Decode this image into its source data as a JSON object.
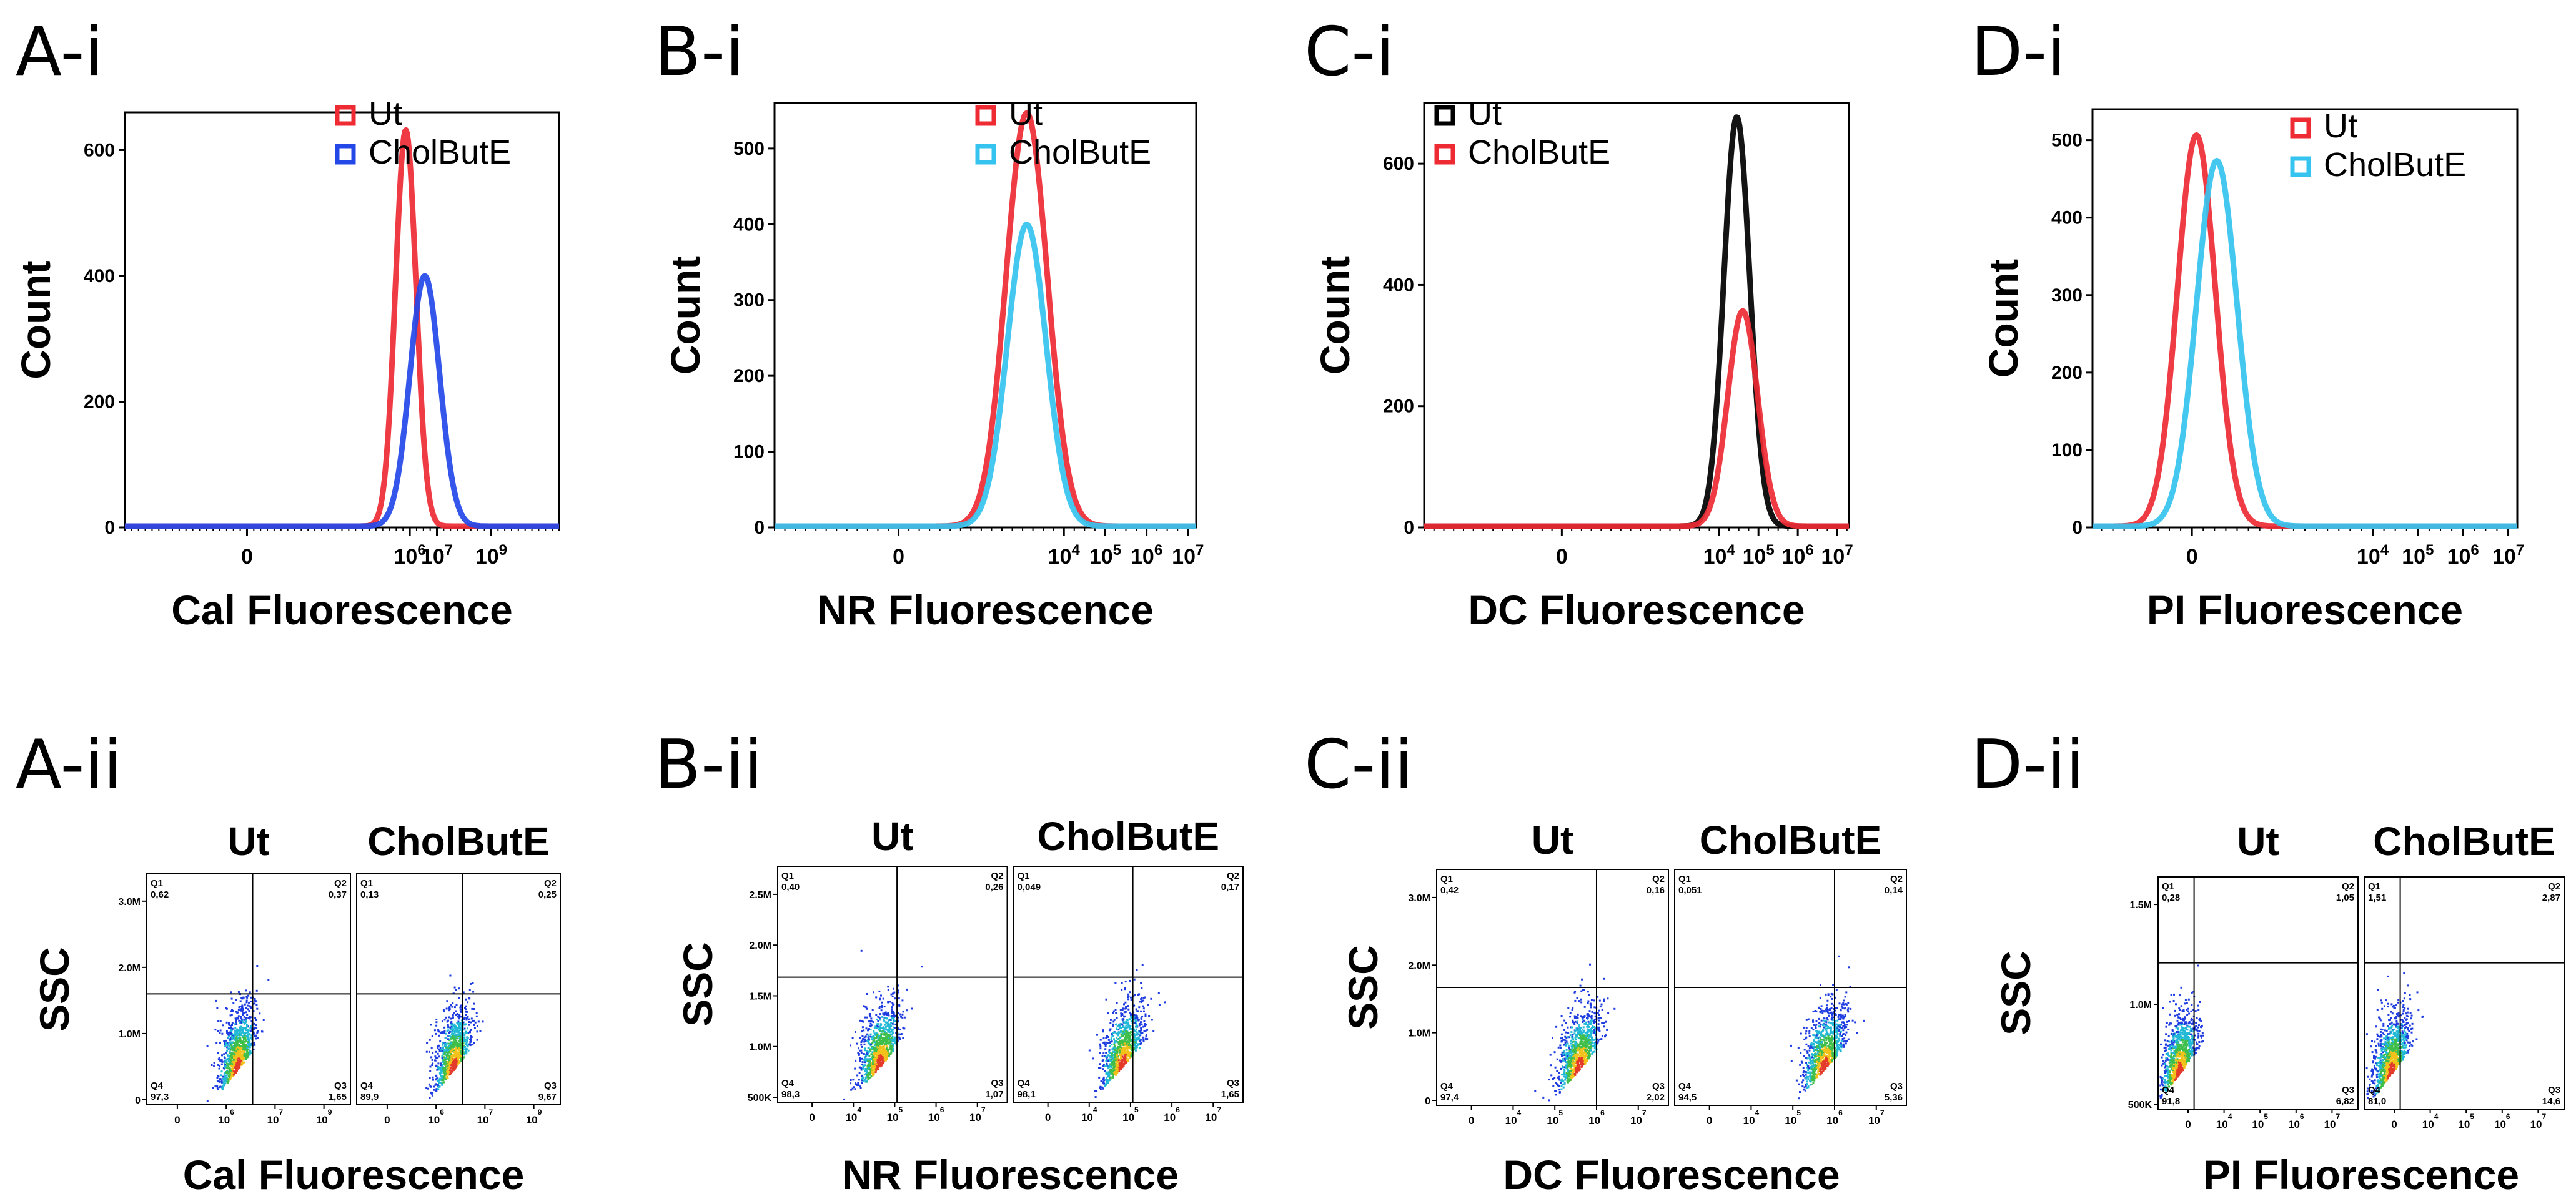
{
  "figure": {
    "panel_labels": {
      "A_i": "A-i",
      "B_i": "B-i",
      "C_i": "C-i",
      "D_i": "D-i",
      "A_ii": "A-ii",
      "B_ii": "B-ii",
      "C_ii": "C-ii",
      "D_ii": "D-ii"
    }
  },
  "colors": {
    "red": "#ee2a33",
    "blue": "#2448e8",
    "cyan": "#35c3ef",
    "black": "#000000"
  },
  "chart_data": [
    {
      "id": "A-i",
      "type": "line",
      "title": "A-i",
      "xlabel": "Cal Fluorescence",
      "ylabel": "Count",
      "ylim": [
        0,
        660
      ],
      "yticks": [
        0,
        200,
        400,
        600
      ],
      "xlim": [
        -4.5,
        11.5
      ],
      "xticks": [
        {
          "pos": 0,
          "base": "0",
          "exp": ""
        },
        {
          "pos": 6,
          "base": "10",
          "exp": "6"
        },
        {
          "pos": 7,
          "base": "10",
          "exp": "7"
        },
        {
          "pos": 9,
          "base": "10",
          "exp": "9"
        }
      ],
      "legend": [
        {
          "name": "Ut",
          "color": "#ee2a33"
        },
        {
          "name": "CholButE",
          "color": "#2448e8"
        }
      ],
      "series": [
        {
          "name": "Ut",
          "color": "#ee2a33",
          "peak_x": 5.85,
          "peak_y": 630,
          "width": 0.38
        },
        {
          "name": "CholButE",
          "color": "#2448e8",
          "peak_x": 6.55,
          "peak_y": 398,
          "width": 0.55
        }
      ]
    },
    {
      "id": "B-i",
      "type": "line",
      "title": "B-i",
      "xlabel": "NR Fluorescence",
      "ylabel": "Count",
      "ylim": [
        0,
        560
      ],
      "yticks": [
        0,
        100,
        200,
        300,
        400,
        500
      ],
      "xlim": [
        -3.0,
        7.2
      ],
      "xticks": [
        {
          "pos": 0,
          "base": "0",
          "exp": ""
        },
        {
          "pos": 4,
          "base": "10",
          "exp": "4"
        },
        {
          "pos": 5,
          "base": "10",
          "exp": "5"
        },
        {
          "pos": 6,
          "base": "10",
          "exp": "6"
        },
        {
          "pos": 7,
          "base": "10",
          "exp": "7"
        }
      ],
      "legend": [
        {
          "name": "Ut",
          "color": "#ee2a33"
        },
        {
          "name": "CholButE",
          "color": "#35c3ef"
        }
      ],
      "series": [
        {
          "name": "Ut",
          "color": "#ee2a33",
          "peak_x": 3.1,
          "peak_y": 545,
          "width": 0.5
        },
        {
          "name": "CholButE",
          "color": "#35c3ef",
          "peak_x": 3.1,
          "peak_y": 398,
          "width": 0.47
        }
      ]
    },
    {
      "id": "C-i",
      "type": "line",
      "title": "C-i",
      "xlabel": "DC Fluorescence",
      "ylabel": "Count",
      "ylim": [
        0,
        700
      ],
      "yticks": [
        0,
        200,
        400,
        600
      ],
      "xlim": [
        -3.5,
        7.3
      ],
      "xticks": [
        {
          "pos": 0,
          "base": "0",
          "exp": ""
        },
        {
          "pos": 4,
          "base": "10",
          "exp": "4"
        },
        {
          "pos": 5,
          "base": "10",
          "exp": "5"
        },
        {
          "pos": 6,
          "base": "10",
          "exp": "6"
        },
        {
          "pos": 7,
          "base": "10",
          "exp": "7"
        }
      ],
      "legend": [
        {
          "name": "Ut",
          "color": "#000000"
        },
        {
          "name": "CholButE",
          "color": "#ee2a33"
        }
      ],
      "series": [
        {
          "name": "Ut",
          "color": "#000000",
          "peak_x": 4.45,
          "peak_y": 675,
          "width": 0.33
        },
        {
          "name": "CholButE",
          "color": "#ee2a33",
          "peak_x": 4.6,
          "peak_y": 355,
          "width": 0.38
        }
      ]
    },
    {
      "id": "D-i",
      "type": "line",
      "title": "D-i",
      "xlabel": "PI Fluorescence",
      "ylabel": "Count",
      "ylim": [
        0,
        540
      ],
      "yticks": [
        0,
        100,
        200,
        300,
        400,
        500
      ],
      "xlim": [
        -2.2,
        7.2
      ],
      "xticks": [
        {
          "pos": 0,
          "base": "0",
          "exp": ""
        },
        {
          "pos": 4,
          "base": "10",
          "exp": "4"
        },
        {
          "pos": 5,
          "base": "10",
          "exp": "5"
        },
        {
          "pos": 6,
          "base": "10",
          "exp": "6"
        },
        {
          "pos": 7,
          "base": "10",
          "exp": "7"
        }
      ],
      "legend": [
        {
          "name": "Ut",
          "color": "#ee2a33"
        },
        {
          "name": "CholButE",
          "color": "#35c3ef"
        }
      ],
      "series": [
        {
          "name": "Ut",
          "color": "#ee2a33",
          "peak_x": 0.1,
          "peak_y": 505,
          "width": 0.42
        },
        {
          "name": "CholButE",
          "color": "#35c3ef",
          "peak_x": 0.55,
          "peak_y": 472,
          "width": 0.45
        }
      ]
    },
    {
      "id": "A-ii",
      "type": "scatter",
      "title": "A-ii",
      "xlabel": "Cal Fluorescence",
      "ylabel": "SSC",
      "yticks": [
        "0",
        "1.0M",
        "2.0M",
        "3.0M"
      ],
      "xticks": [
        "0",
        "10",
        "10",
        "10"
      ],
      "xtick_exps": [
        "",
        "6",
        "7",
        "9"
      ],
      "subplots": [
        {
          "name": "Ut",
          "quadrants": {
            "Q1": "0,62",
            "Q2": "0,37",
            "Q3": "1,65",
            "Q4": "97,3"
          }
        },
        {
          "name": "CholButE",
          "quadrants": {
            "Q1": "0,13",
            "Q2": "0,25",
            "Q3": "9,67",
            "Q4": "89,9"
          }
        }
      ]
    },
    {
      "id": "B-ii",
      "type": "scatter",
      "title": "B-ii",
      "xlabel": "NR Fluorescence",
      "ylabel": "SSC",
      "yticks": [
        "500K",
        "1.0M",
        "1.5M",
        "2.0M",
        "2.5M"
      ],
      "xticks": [
        "0",
        "10",
        "10",
        "10",
        "10"
      ],
      "xtick_exps": [
        "",
        "4",
        "5",
        "6",
        "7"
      ],
      "subplots": [
        {
          "name": "Ut",
          "quadrants": {
            "Q1": "0,40",
            "Q2": "0,26",
            "Q3": "1,07",
            "Q4": "98,3"
          }
        },
        {
          "name": "CholButE",
          "quadrants": {
            "Q1": "0,049",
            "Q2": "0,17",
            "Q3": "1,65",
            "Q4": "98,1"
          }
        }
      ]
    },
    {
      "id": "C-ii",
      "type": "scatter",
      "title": "C-ii",
      "xlabel": "DC Fluorescence",
      "ylabel": "SSC",
      "yticks": [
        "0",
        "1.0M",
        "2.0M",
        "3.0M"
      ],
      "xticks": [
        "0",
        "10",
        "10",
        "10",
        "10"
      ],
      "xtick_exps": [
        "",
        "4",
        "5",
        "6",
        "7"
      ],
      "subplots": [
        {
          "name": "Ut",
          "quadrants": {
            "Q1": "0,42",
            "Q2": "0,16",
            "Q3": "2,02",
            "Q4": "97,4"
          }
        },
        {
          "name": "CholButE",
          "quadrants": {
            "Q1": "0,051",
            "Q2": "0,14",
            "Q3": "5,36",
            "Q4": "94,5"
          }
        }
      ]
    },
    {
      "id": "D-ii",
      "type": "scatter",
      "title": "D-ii",
      "xlabel": "PI Fluorescence",
      "ylabel": "SSC",
      "yticks": [
        "500K",
        "1.0M",
        "1.5M"
      ],
      "xticks": [
        "0",
        "10",
        "10",
        "10",
        "10"
      ],
      "xtick_exps": [
        "",
        "4",
        "5",
        "6",
        "7"
      ],
      "subplots": [
        {
          "name": "Ut",
          "quadrants": {
            "Q1": "0,28",
            "Q2": "1,05",
            "Q3": "6,82",
            "Q4": "91,8"
          }
        },
        {
          "name": "CholButE",
          "quadrants": {
            "Q1": "1,51",
            "Q2": "2,87",
            "Q3": "14,6",
            "Q4": "81,0"
          }
        }
      ]
    }
  ]
}
